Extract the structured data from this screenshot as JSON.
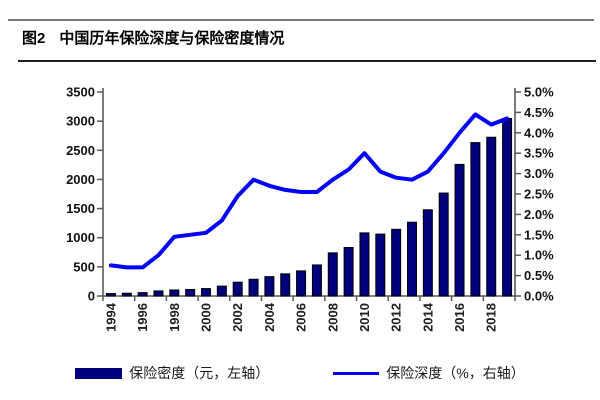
{
  "header": {
    "figure_label": "图2",
    "title": "中国历年保险深度与保险密度情况"
  },
  "colors": {
    "bar_fill": "#00007d",
    "bar_stroke": "#000000",
    "line": "#0202fa",
    "axis": "#5a5a5a",
    "text": "#121212"
  },
  "chart_data": {
    "type": "bar",
    "subtype": "bar+line dual axis",
    "x": [
      1994,
      1995,
      1996,
      1997,
      1998,
      1999,
      2000,
      2001,
      2002,
      2003,
      2004,
      2005,
      2006,
      2007,
      2008,
      2009,
      2010,
      2011,
      2012,
      2013,
      2014,
      2015,
      2016,
      2017,
      2018,
      2019
    ],
    "x_tick_labels": [
      "1994",
      "1996",
      "1998",
      "2000",
      "2002",
      "2004",
      "2006",
      "2008",
      "2010",
      "2012",
      "2014",
      "2016",
      "2018"
    ],
    "series": [
      {
        "name": "保险密度（元，左轴）",
        "type": "bar",
        "axis": "left",
        "color": "#00007d",
        "values": [
          42,
          48,
          58,
          87,
          103,
          112,
          127,
          169,
          237,
          287,
          332,
          380,
          431,
          533,
          740,
          832,
          1083,
          1062,
          1144,
          1266,
          1479,
          1766,
          2258,
          2632,
          2724,
          3046
        ]
      },
      {
        "name": "保险深度（%，右轴）",
        "type": "line",
        "axis": "right",
        "color": "#0202fa",
        "values": [
          0.75,
          0.7,
          0.7,
          1.0,
          1.45,
          1.5,
          1.55,
          1.85,
          2.45,
          2.85,
          2.7,
          2.6,
          2.55,
          2.55,
          2.85,
          3.1,
          3.5,
          3.05,
          2.9,
          2.85,
          3.05,
          3.5,
          4.0,
          4.45,
          4.2,
          4.35
        ]
      }
    ],
    "left_axis": {
      "min": 0,
      "max": 3500,
      "step": 500,
      "labels": [
        "0",
        "500",
        "1000",
        "1500",
        "2000",
        "2500",
        "3000",
        "3500"
      ]
    },
    "right_axis": {
      "min": 0.0,
      "max": 5.0,
      "step": 0.5,
      "format": "percent",
      "labels": [
        "0.0%",
        "0.5%",
        "1.0%",
        "1.5%",
        "2.0%",
        "2.5%",
        "3.0%",
        "3.5%",
        "4.0%",
        "4.5%",
        "5.0%"
      ]
    },
    "grid": "off",
    "legend_position": "bottom"
  }
}
